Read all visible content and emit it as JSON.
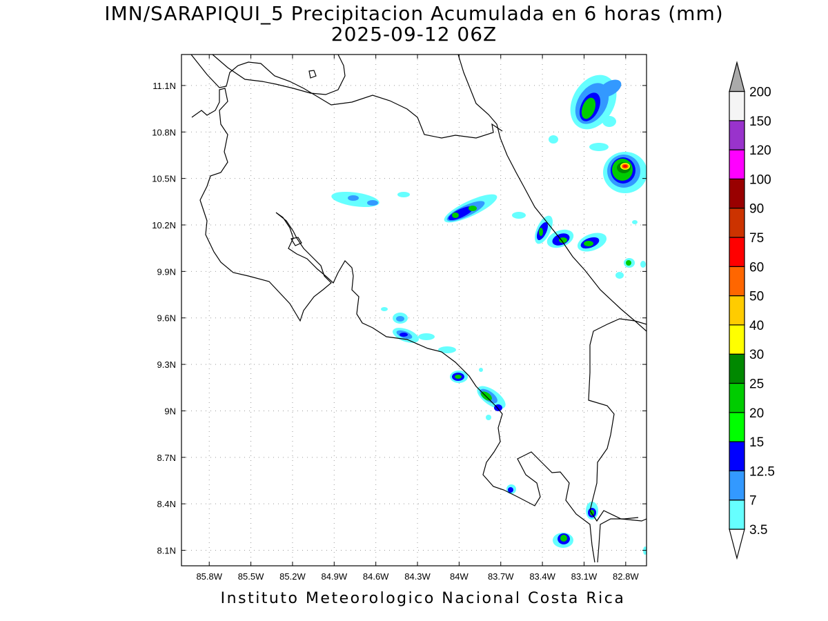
{
  "title": {
    "line1": "IMN/SARAPIQUI_5 Precipitacion Acumulada en 6 horas (mm)",
    "line2": "2025-09-12 06Z"
  },
  "footer": "Instituto Meteorologico Nacional Costa Rica",
  "map": {
    "lon_range": [
      -86.0,
      -82.65
    ],
    "lat_range": [
      8.0,
      11.3
    ],
    "lon_ticks": [
      "85.8W",
      "85.5W",
      "85.2W",
      "84.9W",
      "84.6W",
      "84.3W",
      "84W",
      "83.7W",
      "83.4W",
      "83.1W",
      "82.8W"
    ],
    "lat_ticks": [
      "8.1N",
      "8.4N",
      "8.7N",
      "9N",
      "9.3N",
      "9.6N",
      "9.9N",
      "10.2N",
      "10.5N",
      "10.8N",
      "11.1N"
    ],
    "grid": "dotted"
  },
  "colorbar": {
    "labels": [
      "3.5",
      "7",
      "12.5",
      "15",
      "20",
      "25",
      "30",
      "40",
      "50",
      "60",
      "75",
      "90",
      "100",
      "120",
      "150",
      "200"
    ],
    "colors": [
      "#66ffff",
      "#3399ff",
      "#0000ff",
      "#00ff00",
      "#00cc00",
      "#008800",
      "#ffff00",
      "#ffcc00",
      "#ff6600",
      "#ff0000",
      "#cc3300",
      "#990000",
      "#ff00ff",
      "#9933cc",
      "#f5f5f5",
      "#aaaaaa"
    ]
  },
  "precip_cells": [
    {
      "lon": -82.95,
      "lat": 11.0,
      "max": 25
    },
    {
      "lon": -82.7,
      "lat": 10.58,
      "max": 60
    },
    {
      "lon": -83.85,
      "lat": 10.3,
      "max": 20
    },
    {
      "lon": -84.6,
      "lat": 10.35,
      "max": 7
    },
    {
      "lon": -83.25,
      "lat": 10.15,
      "max": 20
    },
    {
      "lon": -83.1,
      "lat": 10.1,
      "max": 20
    },
    {
      "lon": -82.92,
      "lat": 10.08,
      "max": 20
    },
    {
      "lon": -84.3,
      "lat": 9.5,
      "max": 12.5
    },
    {
      "lon": -83.95,
      "lat": 9.22,
      "max": 20
    },
    {
      "lon": -83.7,
      "lat": 9.08,
      "max": 20
    },
    {
      "lon": -83.12,
      "lat": 8.18,
      "max": 20
    },
    {
      "lon": -82.98,
      "lat": 8.35,
      "max": 20
    }
  ]
}
